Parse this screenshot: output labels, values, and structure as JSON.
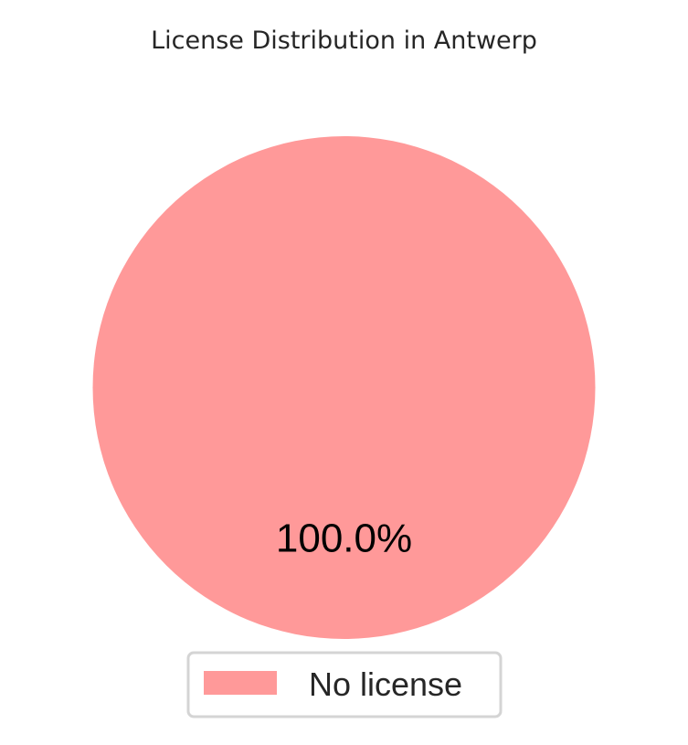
{
  "chart_data": {
    "type": "pie",
    "title": "License Distribution in Antwerp",
    "slices": [
      {
        "label": "No license",
        "value": 100.0,
        "percent_label": "100.0%",
        "color": "#ff9999"
      }
    ],
    "legend": {
      "placement": "bottom-center",
      "entries": [
        "No license"
      ]
    }
  }
}
